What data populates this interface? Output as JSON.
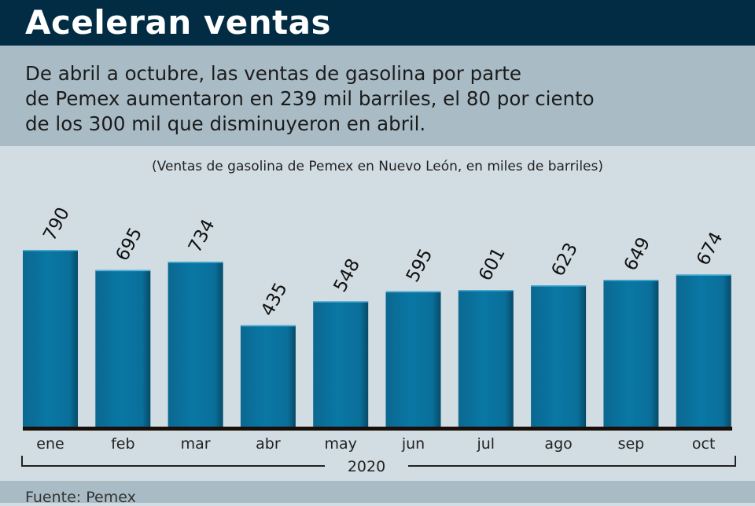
{
  "header": {
    "title": "Aceleran ventas"
  },
  "lead": {
    "lines": [
      "De abril a octubre, las ventas de gasolina por parte",
      "de Pemex aumentaron en 239 mil barriles, el 80 por ciento",
      "de los 300 mil que disminuyeron en abril."
    ]
  },
  "footer": {
    "source": "Fuente: Pemex"
  },
  "colors": {
    "header_bg": "#012c44",
    "bar": "#0a6f9a",
    "bar_dark": "#064f6e",
    "baseline": "#1a0e08"
  },
  "chart_data": {
    "type": "bar",
    "title": "(Ventas de gasolina de Pemex en Nuevo León, en miles de barriles)",
    "xlabel": "2020",
    "ylabel": "",
    "categories": [
      "ene",
      "feb",
      "mar",
      "abr",
      "may",
      "jun",
      "jul",
      "ago",
      "sep",
      "oct"
    ],
    "values": [
      790,
      695,
      734,
      435,
      548,
      595,
      601,
      623,
      649,
      674
    ],
    "data_labels": [
      "790",
      "695",
      "734",
      "435",
      "548",
      "595",
      "601",
      "623",
      "649",
      "674"
    ],
    "grid": false,
    "legend": "none"
  }
}
